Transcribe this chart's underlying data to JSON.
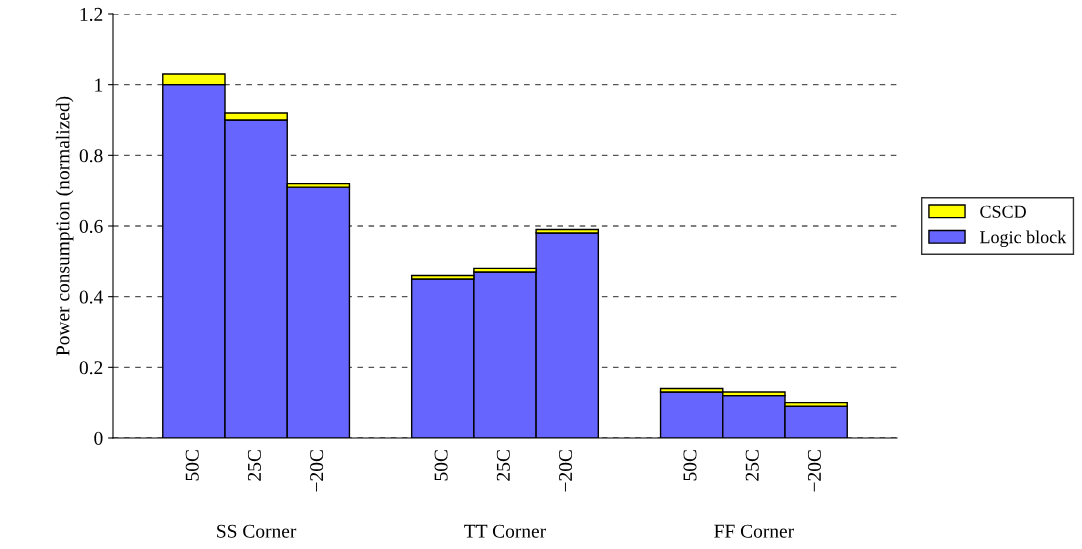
{
  "chart_data": {
    "type": "bar",
    "stacked": true,
    "ylabel": "Power consumption (normalized)",
    "categories": [
      "50C",
      "25C",
      "−20C",
      null,
      "50C",
      "25C",
      "−20C",
      null,
      "50C",
      "25C",
      "−20C"
    ],
    "series": [
      {
        "name": "Logic block",
        "color": "#6666ff",
        "values": [
          1.0,
          0.9,
          0.71,
          null,
          0.45,
          0.47,
          0.58,
          null,
          0.13,
          0.12,
          0.09
        ]
      },
      {
        "name": "CSCD",
        "color": "#ffff00",
        "values": [
          0.03,
          0.02,
          0.01,
          null,
          0.01,
          0.01,
          0.01,
          null,
          0.01,
          0.01,
          0.01
        ]
      }
    ],
    "annotations": [
      "SS Corner",
      "TT Corner",
      "FF Corner"
    ],
    "ylim": [
      0,
      1.2
    ],
    "yticks": [
      0,
      0.2,
      0.4,
      0.6,
      0.8,
      1,
      1.2
    ],
    "grid": "y",
    "legend": "right"
  }
}
